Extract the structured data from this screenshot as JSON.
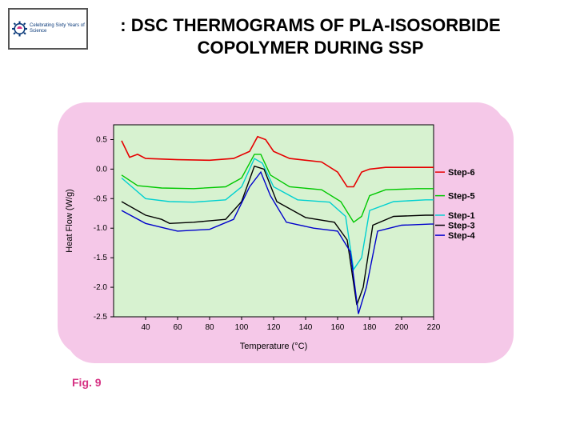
{
  "title_line1": ": DSC THERMOGRAMS OF PLA-ISOSORBIDE",
  "title_line2": "COPOLYMER DURING SSP",
  "fig_label": "Fig. 9",
  "logo_caption": "Celebrating Sixty Years of Science",
  "chart": {
    "type": "line",
    "background_color": "#d7f2d0",
    "panel_color": "#f5c8e8",
    "grid_color": "#d7f2d0",
    "axis_color": "#000000",
    "xlabel": "Temperature (°C)",
    "ylabel": "Heat Flow (W/g)",
    "label_fontsize": 11,
    "tick_fontsize": 10,
    "xlim": [
      20,
      220
    ],
    "ylim": [
      -2.5,
      0.75
    ],
    "xticks": [
      40,
      60,
      80,
      100,
      120,
      140,
      160,
      180,
      200,
      220
    ],
    "yticks": [
      -2.5,
      -2.0,
      -1.5,
      -1.0,
      -0.5,
      0.0,
      0.5
    ],
    "series": [
      {
        "label": "Step-6",
        "color": "#e60000",
        "width": 1.6,
        "x": [
          25,
          30,
          35,
          40,
          60,
          80,
          95,
          105,
          110,
          115,
          120,
          130,
          150,
          160,
          166,
          170,
          175,
          180,
          190,
          210,
          220
        ],
        "y": [
          0.48,
          0.2,
          0.25,
          0.18,
          0.16,
          0.15,
          0.18,
          0.3,
          0.55,
          0.5,
          0.3,
          0.18,
          0.12,
          -0.05,
          -0.3,
          -0.3,
          -0.05,
          0.0,
          0.03,
          0.03,
          0.03
        ]
      },
      {
        "label": "Step-5",
        "color": "#00c800",
        "width": 1.4,
        "x": [
          25,
          35,
          50,
          70,
          90,
          100,
          108,
          112,
          118,
          130,
          150,
          162,
          170,
          175,
          180,
          190,
          210,
          220
        ],
        "y": [
          -0.1,
          -0.28,
          -0.32,
          -0.33,
          -0.3,
          -0.15,
          0.25,
          0.25,
          -0.1,
          -0.3,
          -0.35,
          -0.55,
          -0.9,
          -0.8,
          -0.45,
          -0.35,
          -0.33,
          -0.33
        ]
      },
      {
        "label": "Step-1",
        "color": "#00d0d0",
        "width": 1.4,
        "x": [
          25,
          40,
          55,
          70,
          90,
          100,
          108,
          113,
          120,
          135,
          155,
          165,
          170,
          175,
          180,
          195,
          215,
          220
        ],
        "y": [
          -0.15,
          -0.5,
          -0.55,
          -0.56,
          -0.52,
          -0.3,
          0.18,
          0.1,
          -0.3,
          -0.52,
          -0.56,
          -0.8,
          -1.7,
          -1.5,
          -0.7,
          -0.55,
          -0.52,
          -0.52
        ]
      },
      {
        "label": "Step-3",
        "color": "#000000",
        "width": 1.4,
        "x": [
          25,
          40,
          50,
          55,
          70,
          90,
          100,
          108,
          114,
          122,
          140,
          158,
          166,
          172,
          176,
          182,
          195,
          215,
          220
        ],
        "y": [
          -0.55,
          -0.78,
          -0.85,
          -0.92,
          -0.9,
          -0.85,
          -0.55,
          0.05,
          0.0,
          -0.55,
          -0.82,
          -0.9,
          -1.2,
          -2.3,
          -2.0,
          -0.95,
          -0.8,
          -0.78,
          -0.78
        ]
      },
      {
        "label": "Step-4",
        "color": "#0000cc",
        "width": 1.4,
        "x": [
          25,
          40,
          52,
          60,
          80,
          95,
          105,
          112,
          118,
          128,
          145,
          160,
          168,
          173,
          178,
          185,
          200,
          218,
          220
        ],
        "y": [
          -0.7,
          -0.92,
          -1.0,
          -1.05,
          -1.02,
          -0.85,
          -0.3,
          -0.05,
          -0.45,
          -0.9,
          -1.0,
          -1.05,
          -1.4,
          -2.45,
          -2.0,
          -1.05,
          -0.95,
          -0.93,
          -0.93
        ]
      }
    ],
    "legend": {
      "x": 225,
      "font_size": 11,
      "items": [
        {
          "label": "Step-6",
          "color": "#e60000",
          "y": -0.05
        },
        {
          "label": "Step-5",
          "color": "#00c800",
          "y": -0.45
        },
        {
          "label": "Step-1",
          "color": "#00d0d0",
          "y": -0.78
        },
        {
          "label": "Step-3",
          "color": "#000000",
          "y": -0.95
        },
        {
          "label": "Step-4",
          "color": "#0000cc",
          "y": -1.12
        }
      ]
    }
  }
}
